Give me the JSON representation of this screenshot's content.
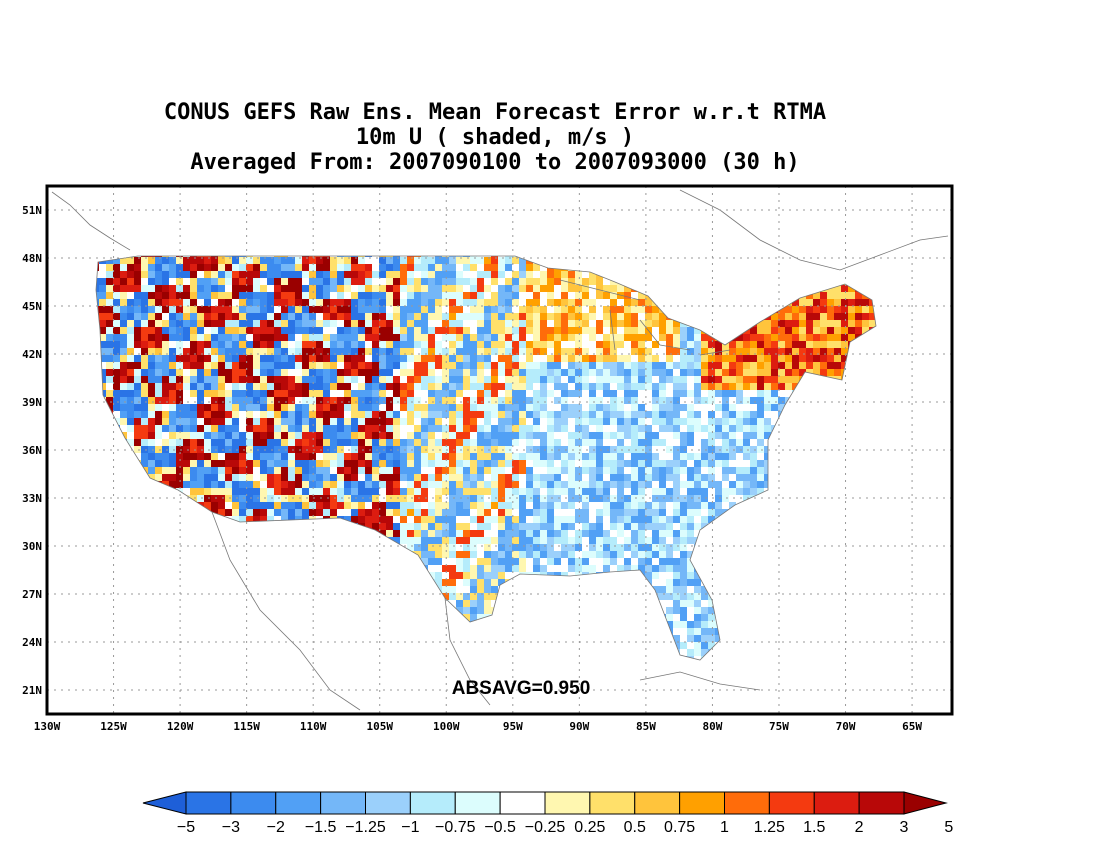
{
  "title": {
    "line1": "CONUS GEFS Raw Ens. Mean Forecast Error w.r.t RTMA",
    "line2": "10m U ( shaded, m/s )",
    "line3": "Averaged From: 2007090100 to 2007093000 (30 h)"
  },
  "annotation": "ABSAVG=0.950",
  "map": {
    "region": "CONUS",
    "lon_range": [
      -130,
      -62
    ],
    "lat_range": [
      19.5,
      52.5
    ],
    "grid": true,
    "lon_ticks": [
      {
        "value": -130,
        "label": "130W"
      },
      {
        "value": -125,
        "label": "125W"
      },
      {
        "value": -120,
        "label": "120W"
      },
      {
        "value": -115,
        "label": "115W"
      },
      {
        "value": -110,
        "label": "110W"
      },
      {
        "value": -105,
        "label": "105W"
      },
      {
        "value": -100,
        "label": "100W"
      },
      {
        "value": -95,
        "label": "95W"
      },
      {
        "value": -90,
        "label": "90W"
      },
      {
        "value": -85,
        "label": "85W"
      },
      {
        "value": -80,
        "label": "80W"
      },
      {
        "value": -75,
        "label": "75W"
      },
      {
        "value": -70,
        "label": "70W"
      },
      {
        "value": -65,
        "label": "65W"
      }
    ],
    "lat_ticks": [
      {
        "value": 21,
        "label": "21N"
      },
      {
        "value": 24,
        "label": "24N"
      },
      {
        "value": 27,
        "label": "27N"
      },
      {
        "value": 30,
        "label": "30N"
      },
      {
        "value": 33,
        "label": "33N"
      },
      {
        "value": 36,
        "label": "36N"
      },
      {
        "value": 39,
        "label": "39N"
      },
      {
        "value": 42,
        "label": "42N"
      },
      {
        "value": 45,
        "label": "45N"
      },
      {
        "value": 48,
        "label": "48N"
      },
      {
        "value": 51,
        "label": "51N"
      }
    ]
  },
  "colorbar": {
    "labels": [
      "-5",
      "-3",
      "-2",
      "-1.5",
      "-1.25",
      "-1",
      "-0.75",
      "-0.5",
      "-0.25",
      "0.25",
      "0.5",
      "0.75",
      "1",
      "1.25",
      "1.5",
      "2",
      "3",
      "5"
    ],
    "colors": [
      "#1e5fd8",
      "#2a74e6",
      "#3c8bef",
      "#51a0f5",
      "#74b7f8",
      "#9bd0fb",
      "#b5ecfb",
      "#dcfdfd",
      "#ffffff",
      "#fff7b0",
      "#ffe06a",
      "#ffc43c",
      "#ffa000",
      "#ff6c0a",
      "#f43a10",
      "#dc1c10",
      "#b80808",
      "#9a0000"
    ]
  }
}
